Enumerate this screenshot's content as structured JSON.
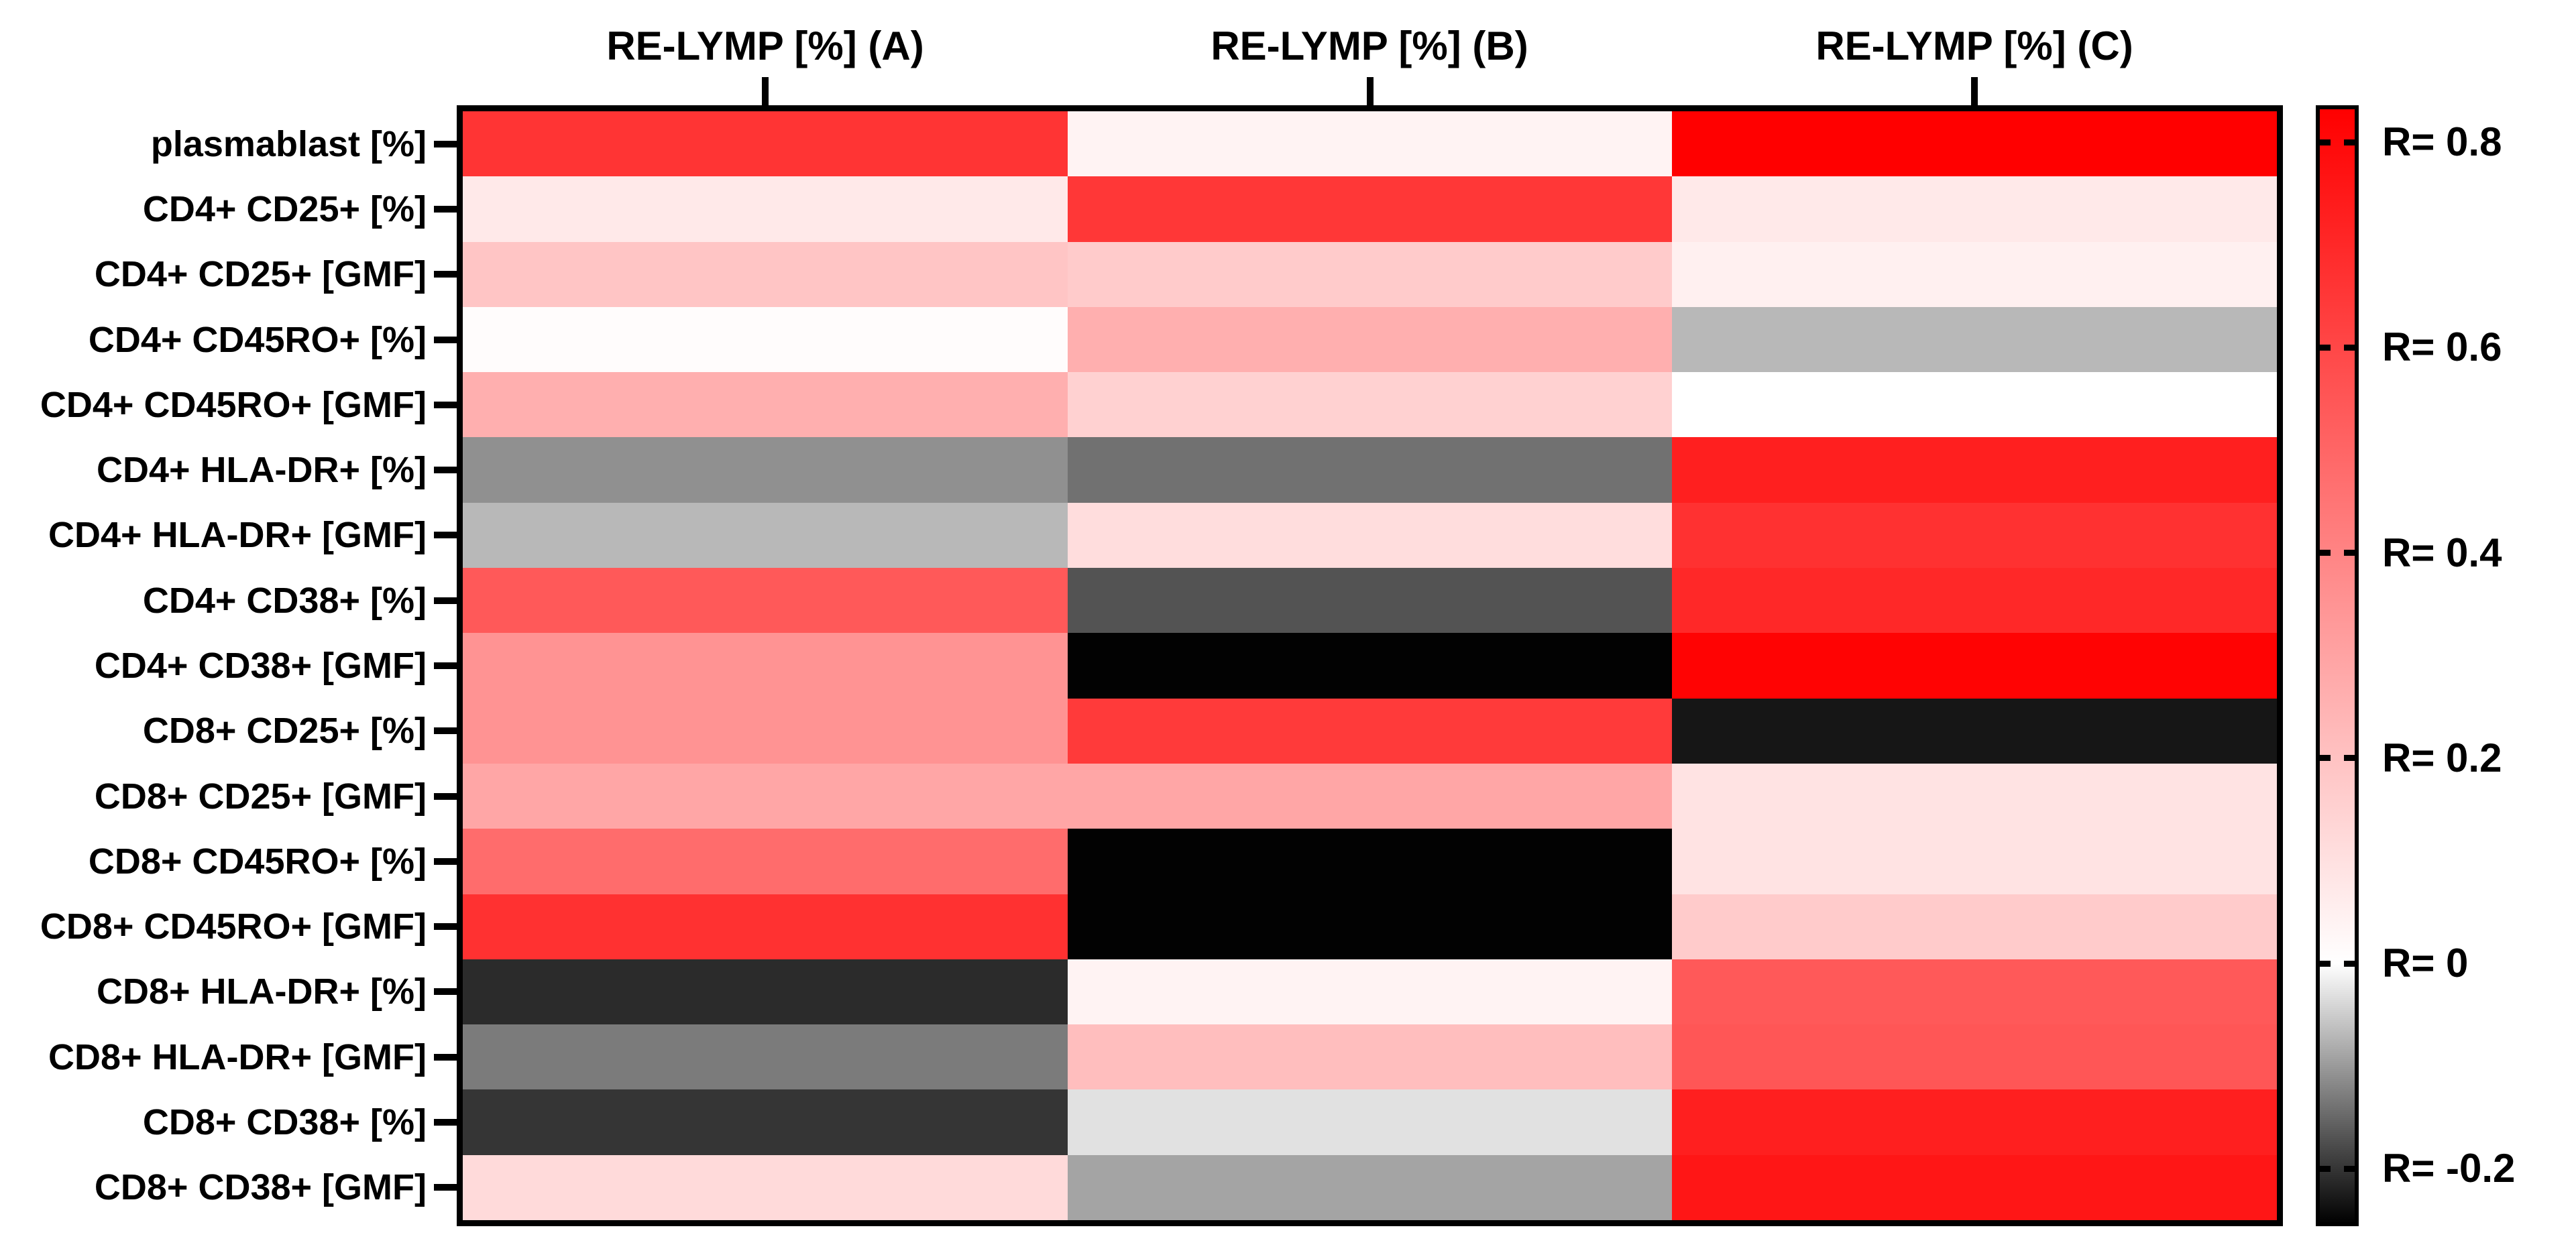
{
  "chart_data": {
    "type": "heatmap",
    "title": "",
    "x_categories": [
      "RE-LYMP [%] (A)",
      "RE-LYMP [%] (B)",
      "RE-LYMP [%] (C)"
    ],
    "y_categories": [
      "plasmablast [%]",
      "CD4+ CD25+ [%]",
      "CD4+ CD25+ [GMF]",
      "CD4+ CD45RO+ [%]",
      "CD4+ CD45RO+ [GMF]",
      "CD4+ HLA-DR+ [%]",
      "CD4+ HLA-DR+ [GMF]",
      "CD4+ CD38+ [%]",
      "CD4+ CD38+ [GMF]",
      "CD8+ CD25+ [%]",
      "CD8+ CD25+ [GMF]",
      "CD8+ CD45RO+ [%]",
      "CD8+ CD45RO+ [GMF]",
      "CD8+ HLA-DR+ [%]",
      "CD8+ HLA-DR+ [GMF]",
      "CD8+ CD38+ [%]",
      "CD8+ CD38+ [GMF]"
    ],
    "values": [
      [
        0.66,
        0.04,
        0.83
      ],
      [
        0.07,
        0.65,
        0.07
      ],
      [
        0.19,
        0.17,
        0.05
      ],
      [
        0.01,
        0.26,
        -0.07
      ],
      [
        0.26,
        0.15,
        0.0
      ],
      [
        -0.11,
        -0.14,
        0.73
      ],
      [
        -0.07,
        0.11,
        0.67
      ],
      [
        0.54,
        -0.17,
        0.7
      ],
      [
        0.35,
        -0.25,
        0.82
      ],
      [
        0.35,
        0.64,
        -0.23
      ],
      [
        0.29,
        0.29,
        0.09
      ],
      [
        0.48,
        -0.25,
        0.09
      ],
      [
        0.67,
        -0.25,
        0.17
      ],
      [
        -0.21,
        0.04,
        0.54
      ],
      [
        -0.13,
        0.21,
        0.55
      ],
      [
        -0.2,
        -0.03,
        0.73
      ],
      [
        0.12,
        -0.09,
        0.76
      ]
    ],
    "colorbar": {
      "ticks": [
        0.8,
        0.6,
        0.4,
        0.2,
        0,
        -0.2
      ],
      "tick_labels": [
        "R= 0.8",
        "R= 0.6",
        "R= 0.4",
        "R= 0.2",
        "R= 0",
        "R= -0.2"
      ],
      "vmax": 0.832,
      "vmin": -0.252,
      "colormap": "black-white-red"
    },
    "grid": false,
    "legend_position": "right"
  },
  "colors": {
    "positive_max": "#FF0000",
    "zero": "#FFFFFF",
    "negative_min": "#000000",
    "border": "#000000",
    "background": "#FFFFFF"
  }
}
